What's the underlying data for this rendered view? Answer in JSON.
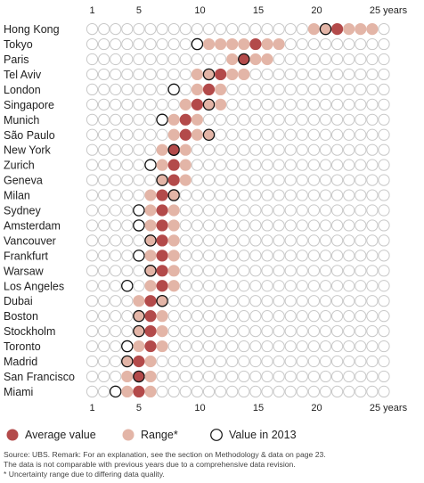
{
  "chart_data": {
    "type": "scatter",
    "x_unit_label": "years",
    "x_ticks": [
      1,
      5,
      10,
      15,
      20,
      25
    ],
    "x_range": [
      1,
      26
    ],
    "colors": {
      "average": "#b34a4a",
      "range": "#e3b5a7",
      "empty_fill": "#ffffff",
      "empty_stroke": "#c8c8c8",
      "value2013_stroke": "#111111"
    },
    "cities": [
      {
        "name": "Hong Kong",
        "range": [
          20,
          25
        ],
        "average": 22,
        "value_2013": 21
      },
      {
        "name": "Tokyo",
        "range": [
          11,
          17
        ],
        "average": 15,
        "value_2013": 10
      },
      {
        "name": "Paris",
        "range": [
          13,
          16
        ],
        "average": 14,
        "value_2013": 14
      },
      {
        "name": "Tel Aviv",
        "range": [
          10,
          14
        ],
        "average": 12,
        "value_2013": 11
      },
      {
        "name": "London",
        "range": [
          10,
          12
        ],
        "average": 11,
        "value_2013": 8
      },
      {
        "name": "Singapore",
        "range": [
          9,
          12
        ],
        "average": 10,
        "value_2013": 11
      },
      {
        "name": "Munich",
        "range": [
          8,
          10
        ],
        "average": 9,
        "value_2013": 7
      },
      {
        "name": "São Paulo",
        "range": [
          8,
          11
        ],
        "average": 9,
        "value_2013": 11
      },
      {
        "name": "New York",
        "range": [
          7,
          9
        ],
        "average": 8,
        "value_2013": 8
      },
      {
        "name": "Zurich",
        "range": [
          7,
          9
        ],
        "average": 8,
        "value_2013": 6
      },
      {
        "name": "Geneva",
        "range": [
          7,
          9
        ],
        "average": 8,
        "value_2013": 7
      },
      {
        "name": "Milan",
        "range": [
          6,
          8
        ],
        "average": 7,
        "value_2013": 8
      },
      {
        "name": "Sydney",
        "range": [
          6,
          8
        ],
        "average": 7,
        "value_2013": 5
      },
      {
        "name": "Amsterdam",
        "range": [
          6,
          8
        ],
        "average": 7,
        "value_2013": 5
      },
      {
        "name": "Vancouver",
        "range": [
          6,
          8
        ],
        "average": 7,
        "value_2013": 6
      },
      {
        "name": "Frankfurt",
        "range": [
          6,
          8
        ],
        "average": 7,
        "value_2013": 5
      },
      {
        "name": "Warsaw",
        "range": [
          6,
          8
        ],
        "average": 7,
        "value_2013": 6
      },
      {
        "name": "Los Angeles",
        "range": [
          6,
          8
        ],
        "average": 7,
        "value_2013": 4
      },
      {
        "name": "Dubai",
        "range": [
          5,
          7
        ],
        "average": 6,
        "value_2013": 7
      },
      {
        "name": "Boston",
        "range": [
          5,
          7
        ],
        "average": 6,
        "value_2013": 5
      },
      {
        "name": "Stockholm",
        "range": [
          5,
          7
        ],
        "average": 6,
        "value_2013": 5
      },
      {
        "name": "Toronto",
        "range": [
          5,
          7
        ],
        "average": 6,
        "value_2013": 4
      },
      {
        "name": "Madrid",
        "range": [
          4,
          6
        ],
        "average": 5,
        "value_2013": 4
      },
      {
        "name": "San Francisco",
        "range": [
          4,
          6
        ],
        "average": 5,
        "value_2013": 5
      },
      {
        "name": "Miami",
        "range": [
          4,
          6
        ],
        "average": 5,
        "value_2013": 3
      }
    ],
    "legend": {
      "average": "Average value",
      "range": "Range*",
      "value_2013": "Value in 2013"
    }
  },
  "notes": {
    "source": "Source: UBS. Remark: For an explanation, see the section on Methodology & data on page 23.",
    "line2": "The data is not comparable with previous years due to a comprehensive data revision.",
    "footnote": "* Uncertainty range due to differing data quality."
  }
}
